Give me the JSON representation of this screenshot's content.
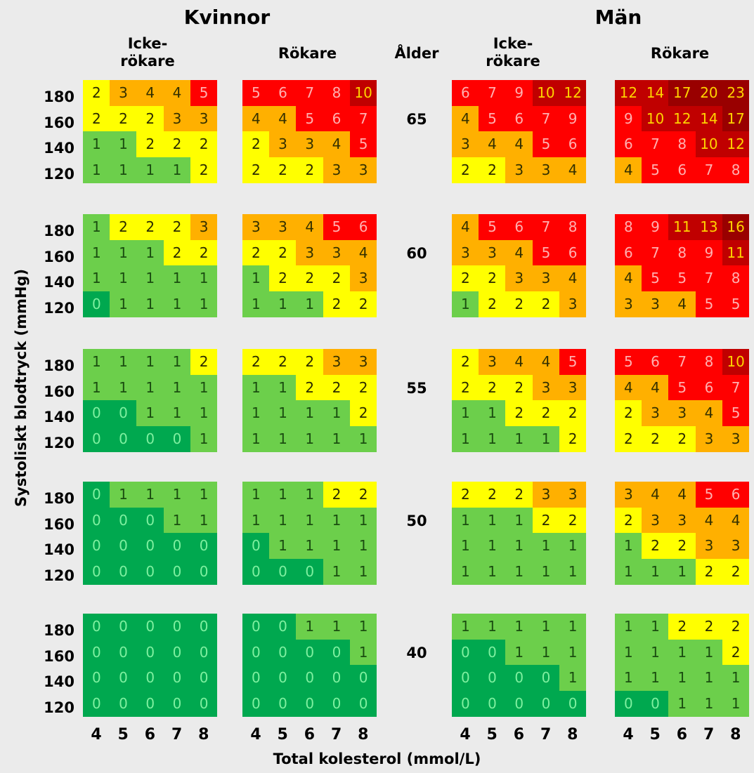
{
  "title_women": "Kvinnor",
  "title_men": "Män",
  "age_header": "Ålder",
  "sub_nonsmoker": "Icke-\nrökare",
  "sub_smoker": "Rökare",
  "y_label": "Systoliskt blodtryck (mmHg)",
  "x_label": "Total kolesterol (mmol/L)",
  "bp_levels": [
    "180",
    "160",
    "140",
    "120"
  ],
  "cholesterol": [
    "4",
    "5",
    "6",
    "7",
    "8"
  ],
  "ages": [
    "65",
    "60",
    "55",
    "50",
    "40"
  ],
  "colors": {
    "0": "#00a84f",
    "1": "#6ccf4b",
    "2": "#ffff00",
    "3": "#ffb000",
    "4": "#ffb000",
    "5": "#ff0000",
    "6": "#ff0000",
    "7": "#ff0000",
    "8": "#ff0000",
    "9": "#ff0000",
    "10": "#c00000",
    "high": "#c00000",
    "highest": "#990000"
  },
  "chart_data": {
    "type": "heatmap",
    "x": [
      "4",
      "5",
      "6",
      "7",
      "8"
    ],
    "y": [
      "180",
      "160",
      "140",
      "120"
    ],
    "blocks": {
      "women_nonsmoker": [
        [
          [
            2,
            3,
            4,
            4,
            5
          ],
          [
            2,
            2,
            2,
            3,
            3
          ],
          [
            1,
            1,
            2,
            2,
            2
          ],
          [
            1,
            1,
            1,
            1,
            2
          ]
        ],
        [
          [
            1,
            2,
            2,
            2,
            3
          ],
          [
            1,
            1,
            1,
            2,
            2
          ],
          [
            1,
            1,
            1,
            1,
            1
          ],
          [
            0,
            1,
            1,
            1,
            1
          ]
        ],
        [
          [
            1,
            1,
            1,
            1,
            2
          ],
          [
            1,
            1,
            1,
            1,
            1
          ],
          [
            0,
            0,
            1,
            1,
            1
          ],
          [
            0,
            0,
            0,
            0,
            1
          ]
        ],
        [
          [
            0,
            1,
            1,
            1,
            1
          ],
          [
            0,
            0,
            0,
            1,
            1
          ],
          [
            0,
            0,
            0,
            0,
            0
          ],
          [
            0,
            0,
            0,
            0,
            0
          ]
        ],
        [
          [
            0,
            0,
            0,
            0,
            0
          ],
          [
            0,
            0,
            0,
            0,
            0
          ],
          [
            0,
            0,
            0,
            0,
            0
          ],
          [
            0,
            0,
            0,
            0,
            0
          ]
        ]
      ],
      "women_smoker": [
        [
          [
            5,
            6,
            7,
            8,
            10
          ],
          [
            4,
            4,
            5,
            6,
            7
          ],
          [
            2,
            3,
            3,
            4,
            5
          ],
          [
            2,
            2,
            2,
            3,
            3
          ]
        ],
        [
          [
            3,
            3,
            4,
            5,
            6
          ],
          [
            2,
            2,
            3,
            3,
            4
          ],
          [
            1,
            2,
            2,
            2,
            3
          ],
          [
            1,
            1,
            1,
            2,
            2
          ]
        ],
        [
          [
            2,
            2,
            2,
            3,
            3
          ],
          [
            1,
            1,
            2,
            2,
            2
          ],
          [
            1,
            1,
            1,
            1,
            2
          ],
          [
            1,
            1,
            1,
            1,
            1
          ]
        ],
        [
          [
            1,
            1,
            1,
            2,
            2
          ],
          [
            1,
            1,
            1,
            1,
            1
          ],
          [
            0,
            1,
            1,
            1,
            1
          ],
          [
            0,
            0,
            0,
            1,
            1
          ]
        ],
        [
          [
            0,
            0,
            1,
            1,
            1
          ],
          [
            0,
            0,
            0,
            0,
            1
          ],
          [
            0,
            0,
            0,
            0,
            0
          ],
          [
            0,
            0,
            0,
            0,
            0
          ]
        ]
      ],
      "men_nonsmoker": [
        [
          [
            6,
            7,
            9,
            10,
            12
          ],
          [
            4,
            5,
            6,
            7,
            9
          ],
          [
            3,
            4,
            4,
            5,
            6
          ],
          [
            2,
            2,
            3,
            3,
            4
          ]
        ],
        [
          [
            4,
            5,
            6,
            7,
            8
          ],
          [
            3,
            3,
            4,
            5,
            6
          ],
          [
            2,
            2,
            3,
            3,
            4
          ],
          [
            1,
            2,
            2,
            2,
            3
          ]
        ],
        [
          [
            2,
            3,
            4,
            4,
            5
          ],
          [
            2,
            2,
            2,
            3,
            3
          ],
          [
            1,
            1,
            2,
            2,
            2
          ],
          [
            1,
            1,
            1,
            1,
            2
          ]
        ],
        [
          [
            2,
            2,
            2,
            3,
            3
          ],
          [
            1,
            1,
            1,
            2,
            2
          ],
          [
            1,
            1,
            1,
            1,
            1
          ],
          [
            1,
            1,
            1,
            1,
            1
          ]
        ],
        [
          [
            1,
            1,
            1,
            1,
            1
          ],
          [
            0,
            0,
            1,
            1,
            1
          ],
          [
            0,
            0,
            0,
            0,
            1
          ],
          [
            0,
            0,
            0,
            0,
            0
          ]
        ]
      ],
      "men_smoker": [
        [
          [
            12,
            14,
            17,
            20,
            23
          ],
          [
            9,
            10,
            12,
            14,
            17
          ],
          [
            6,
            7,
            8,
            10,
            12
          ],
          [
            4,
            5,
            6,
            7,
            8
          ]
        ],
        [
          [
            8,
            9,
            11,
            13,
            16
          ],
          [
            6,
            7,
            8,
            9,
            11
          ],
          [
            4,
            5,
            5,
            7,
            8
          ],
          [
            3,
            3,
            4,
            5,
            5
          ]
        ],
        [
          [
            5,
            6,
            7,
            8,
            10
          ],
          [
            4,
            4,
            5,
            6,
            7
          ],
          [
            2,
            3,
            3,
            4,
            5
          ],
          [
            2,
            2,
            2,
            3,
            3
          ]
        ],
        [
          [
            3,
            4,
            4,
            5,
            6
          ],
          [
            2,
            3,
            3,
            4,
            4
          ],
          [
            1,
            2,
            2,
            3,
            3
          ],
          [
            1,
            1,
            1,
            2,
            2
          ]
        ],
        [
          [
            1,
            1,
            2,
            2,
            2
          ],
          [
            1,
            1,
            1,
            1,
            2
          ],
          [
            1,
            1,
            1,
            1,
            1
          ],
          [
            0,
            0,
            1,
            1,
            1
          ]
        ]
      ]
    }
  }
}
